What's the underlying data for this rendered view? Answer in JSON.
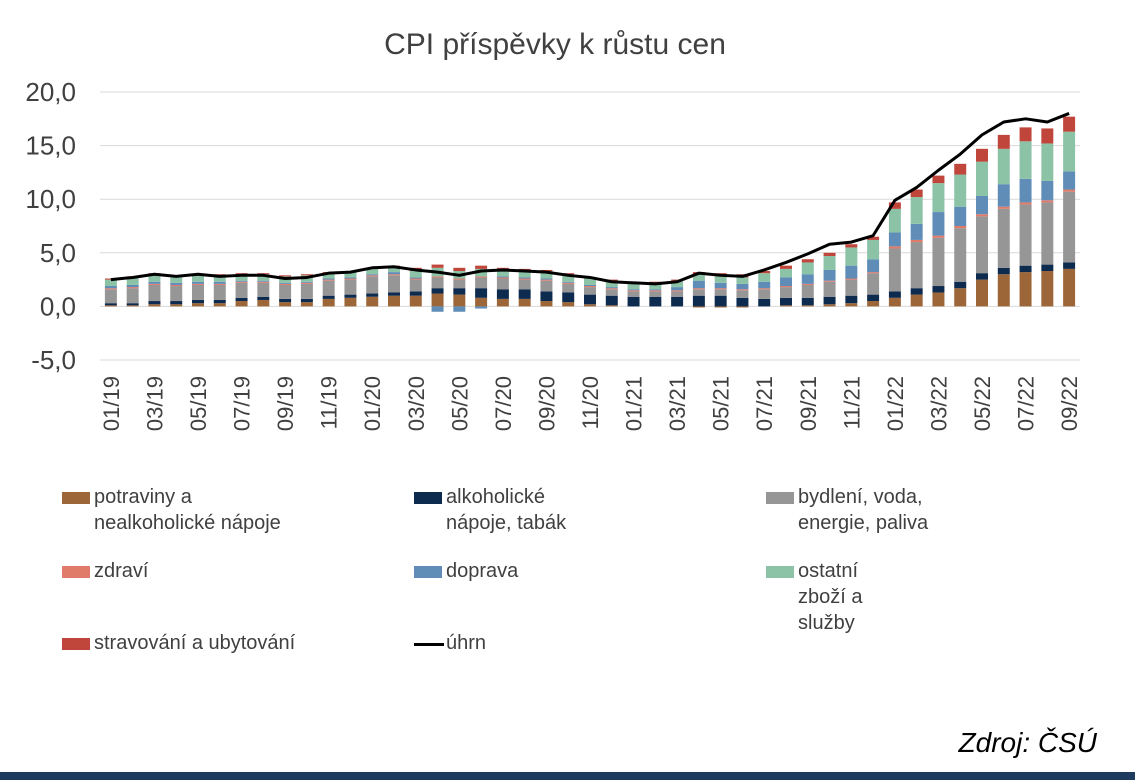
{
  "chart_data": {
    "type": "bar",
    "title": "CPI příspěvky k růstu cen",
    "ylim": [
      -5,
      20
    ],
    "yticks": [
      -5,
      0,
      5,
      10,
      15,
      20
    ],
    "ytick_labels": [
      "-5,0",
      "0,0",
      "5,0",
      "10,0",
      "15,0",
      "20,0"
    ],
    "categories": [
      "01/19",
      "02/19",
      "03/19",
      "04/19",
      "05/19",
      "06/19",
      "07/19",
      "08/19",
      "09/19",
      "10/19",
      "11/19",
      "12/19",
      "01/20",
      "02/20",
      "03/20",
      "04/20",
      "05/20",
      "06/20",
      "07/20",
      "08/20",
      "09/20",
      "10/20",
      "11/20",
      "12/20",
      "01/21",
      "02/21",
      "03/21",
      "04/21",
      "05/21",
      "06/21",
      "07/21",
      "08/21",
      "09/21",
      "10/21",
      "11/21",
      "12/21",
      "01/22",
      "02/22",
      "03/22",
      "04/22",
      "05/22",
      "06/22",
      "07/22",
      "08/22",
      "09/22"
    ],
    "xtick_labels": [
      "01/19",
      "03/19",
      "05/19",
      "07/19",
      "09/19",
      "11/19",
      "01/20",
      "03/20",
      "05/20",
      "07/20",
      "09/20",
      "11/20",
      "01/21",
      "03/21",
      "05/21",
      "07/21",
      "09/21",
      "11/21",
      "01/22",
      "03/22",
      "05/22",
      "07/22",
      "09/22"
    ],
    "grid": true,
    "legend_position": "bottom",
    "series": [
      {
        "name": "potraviny a nealkoholické nápoje",
        "kind": "bar",
        "color": "#9c6638",
        "values": [
          0.1,
          0.1,
          0.2,
          0.2,
          0.3,
          0.3,
          0.5,
          0.6,
          0.4,
          0.4,
          0.7,
          0.8,
          0.9,
          1.0,
          1.0,
          1.2,
          1.1,
          0.8,
          0.7,
          0.7,
          0.5,
          0.4,
          0.2,
          0.1,
          0.0,
          0.0,
          0.0,
          -0.1,
          -0.1,
          -0.1,
          0.0,
          0.1,
          0.1,
          0.2,
          0.3,
          0.5,
          0.8,
          1.1,
          1.3,
          1.7,
          2.5,
          3.0,
          3.2,
          3.3,
          3.5
        ]
      },
      {
        "name": "alkoholické nápoje, tabák",
        "kind": "bar",
        "color": "#0d2a4f",
        "values": [
          0.2,
          0.2,
          0.3,
          0.3,
          0.3,
          0.3,
          0.3,
          0.3,
          0.3,
          0.3,
          0.3,
          0.3,
          0.3,
          0.3,
          0.4,
          0.5,
          0.6,
          0.9,
          0.9,
          0.9,
          0.9,
          0.9,
          0.9,
          0.9,
          0.9,
          0.9,
          0.9,
          1.0,
          1.0,
          0.8,
          0.7,
          0.7,
          0.7,
          0.7,
          0.7,
          0.6,
          0.6,
          0.6,
          0.6,
          0.6,
          0.6,
          0.6,
          0.6,
          0.6,
          0.6
        ]
      },
      {
        "name": "bydlení, voda, energie, paliva",
        "kind": "bar",
        "color": "#969696",
        "values": [
          1.3,
          1.4,
          1.5,
          1.4,
          1.4,
          1.4,
          1.4,
          1.3,
          1.3,
          1.4,
          1.4,
          1.4,
          1.6,
          1.6,
          1.1,
          1.0,
          0.8,
          1.0,
          1.0,
          0.9,
          1.0,
          0.8,
          0.7,
          0.6,
          0.5,
          0.5,
          0.5,
          0.6,
          0.6,
          0.7,
          0.9,
          1.0,
          1.2,
          1.4,
          1.5,
          2.0,
          4.0,
          4.3,
          4.5,
          5.0,
          5.3,
          5.5,
          5.7,
          5.8,
          6.6
        ]
      },
      {
        "name": "zdraví",
        "kind": "bar",
        "color": "#e07b6a",
        "values": [
          0.1,
          0.1,
          0.1,
          0.1,
          0.1,
          0.1,
          0.1,
          0.1,
          0.1,
          0.1,
          0.1,
          0.1,
          0.1,
          0.1,
          0.1,
          0.1,
          0.1,
          0.1,
          0.1,
          0.1,
          0.1,
          0.1,
          0.1,
          0.1,
          0.1,
          0.1,
          0.1,
          0.1,
          0.1,
          0.1,
          0.1,
          0.1,
          0.1,
          0.1,
          0.1,
          0.1,
          0.2,
          0.2,
          0.2,
          0.2,
          0.2,
          0.2,
          0.2,
          0.2,
          0.2
        ]
      },
      {
        "name": "doprava",
        "kind": "bar",
        "color": "#5f8db8",
        "values": [
          0.2,
          0.2,
          0.2,
          0.2,
          0.2,
          0.2,
          0.1,
          0.1,
          0.1,
          0.1,
          0.1,
          0.1,
          0.1,
          0.2,
          0.1,
          -0.5,
          -0.5,
          -0.2,
          0.1,
          0.1,
          0.1,
          0.1,
          0.1,
          0.1,
          0.1,
          0.1,
          0.3,
          0.7,
          0.5,
          0.5,
          0.6,
          0.8,
          0.9,
          1.0,
          1.2,
          1.2,
          1.3,
          1.5,
          2.2,
          1.8,
          1.7,
          2.1,
          2.2,
          1.8,
          1.7
        ]
      },
      {
        "name": "ostatní zboží a služby",
        "kind": "bar",
        "color": "#8cc3a7",
        "values": [
          0.6,
          0.7,
          0.7,
          0.6,
          0.6,
          0.6,
          0.6,
          0.6,
          0.6,
          0.6,
          0.5,
          0.5,
          0.5,
          0.5,
          0.6,
          0.8,
          0.7,
          0.7,
          0.7,
          0.7,
          0.7,
          0.7,
          0.6,
          0.6,
          0.6,
          0.6,
          0.6,
          0.6,
          0.6,
          0.6,
          0.8,
          0.8,
          1.1,
          1.3,
          1.7,
          1.8,
          2.2,
          2.5,
          2.7,
          3.0,
          3.2,
          3.3,
          3.5,
          3.5,
          3.7
        ]
      },
      {
        "name": "stravování a ubytování",
        "kind": "bar",
        "color": "#c0453a",
        "values": [
          0.1,
          0.1,
          0.1,
          0.1,
          0.1,
          0.1,
          0.1,
          0.1,
          0.1,
          0.1,
          0.1,
          0.1,
          0.1,
          0.1,
          0.3,
          0.3,
          0.3,
          0.3,
          0.1,
          0.1,
          0.1,
          0.1,
          0.1,
          0.1,
          0.1,
          0.1,
          0.1,
          0.2,
          0.3,
          0.3,
          0.2,
          0.3,
          0.3,
          0.3,
          0.3,
          0.3,
          0.6,
          0.7,
          0.7,
          1.0,
          1.2,
          1.3,
          1.3,
          1.4,
          1.4
        ]
      },
      {
        "name": "úhrn",
        "kind": "line",
        "color": "#000000",
        "values": [
          2.5,
          2.7,
          3.0,
          2.8,
          3.0,
          2.8,
          2.9,
          2.9,
          2.6,
          2.7,
          3.1,
          3.2,
          3.6,
          3.7,
          3.4,
          3.2,
          2.9,
          3.3,
          3.4,
          3.3,
          3.2,
          2.9,
          2.7,
          2.3,
          2.2,
          2.1,
          2.3,
          3.1,
          2.9,
          2.8,
          3.4,
          4.1,
          4.9,
          5.8,
          6.0,
          6.6,
          9.9,
          11.1,
          12.7,
          14.2,
          16.0,
          17.2,
          17.5,
          17.2,
          18.0
        ]
      }
    ]
  },
  "legend": [
    {
      "label": "potraviny a nealkoholické nápoje",
      "color": "#9c6638",
      "kind": "bar"
    },
    {
      "label": "alkoholické nápoje, tabák",
      "color": "#0d2a4f",
      "kind": "bar"
    },
    {
      "label": "bydlení, voda, energie, paliva",
      "color": "#969696",
      "kind": "bar"
    },
    {
      "label": "zdraví",
      "color": "#e07b6a",
      "kind": "bar"
    },
    {
      "label": "doprava",
      "color": "#5f8db8",
      "kind": "bar"
    },
    {
      "label": "ostatní zboží a služby",
      "color": "#8cc3a7",
      "kind": "bar"
    },
    {
      "label": "stravování a ubytování",
      "color": "#c0453a",
      "kind": "bar"
    },
    {
      "label": "úhrn",
      "color": "#000000",
      "kind": "line"
    }
  ],
  "source": "Zdroj: ČSÚ"
}
